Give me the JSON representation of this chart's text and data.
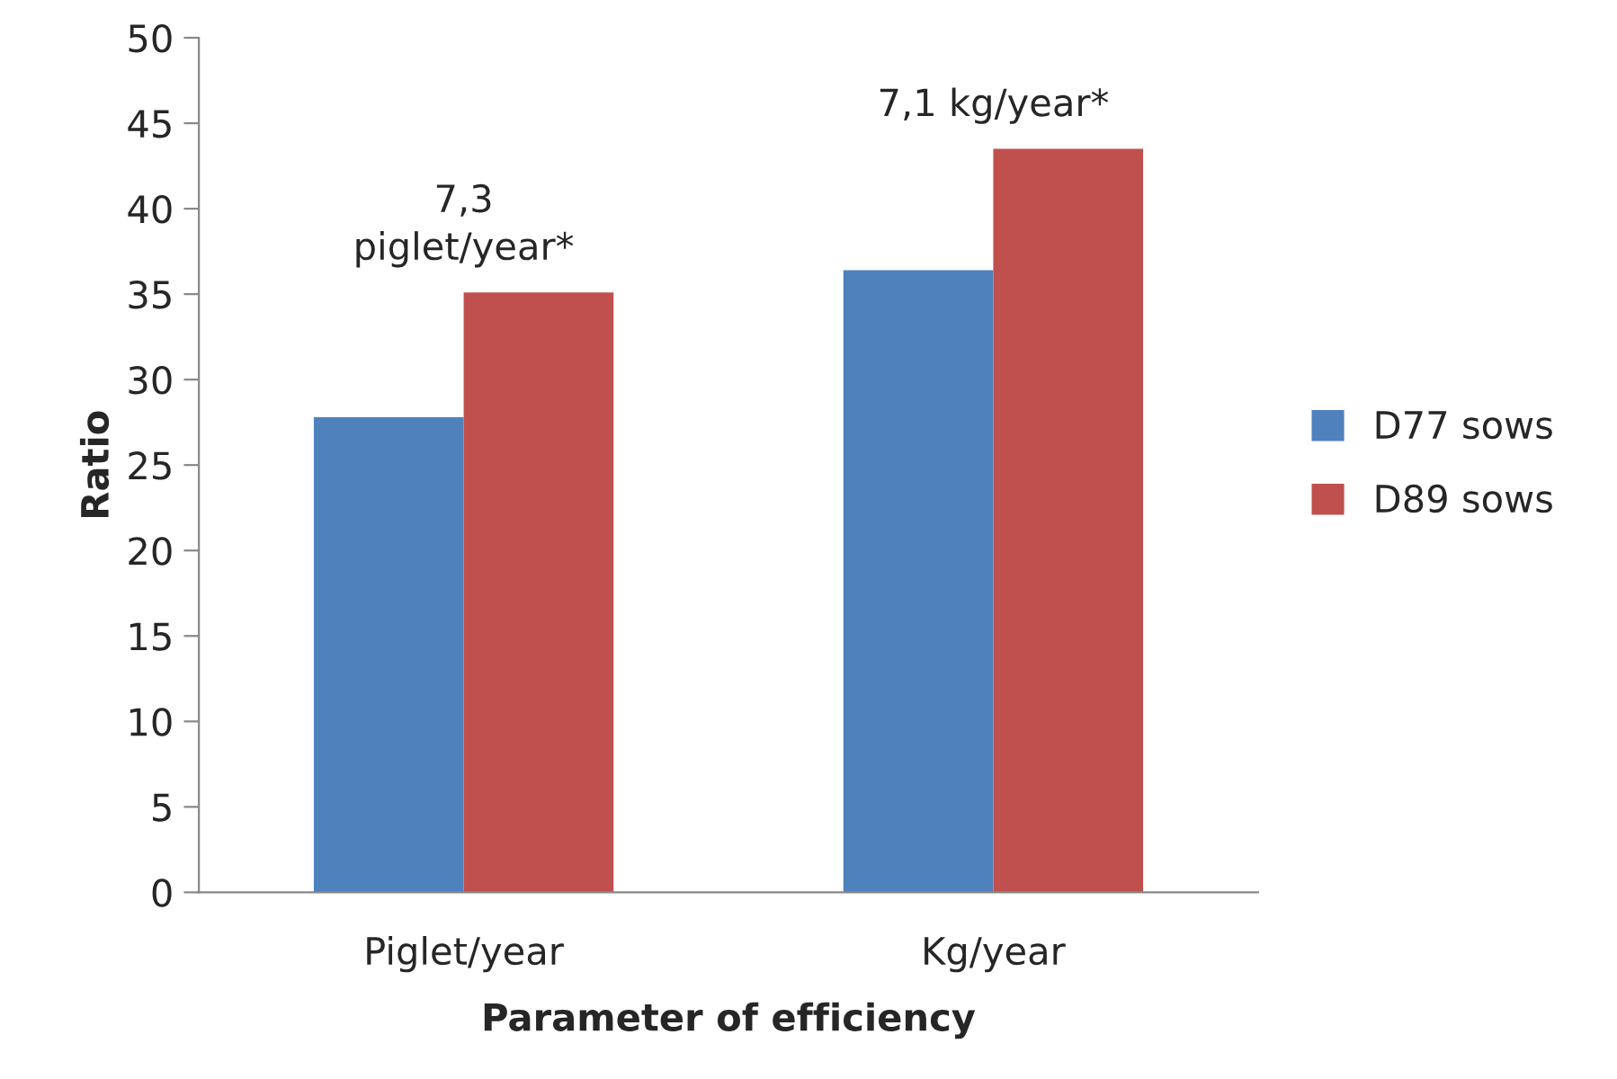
{
  "chart_data": {
    "type": "bar",
    "xlabel": "Parameter of efficiency",
    "ylabel": "Ratio",
    "categories": [
      "Piglet/year",
      "Kg/year"
    ],
    "series": [
      {
        "name": "D77 sows",
        "color": "#4f81bd",
        "values": [
          27.8,
          36.4
        ]
      },
      {
        "name": "D89 sows",
        "color": "#c0504d",
        "values": [
          35.1,
          43.5
        ]
      }
    ],
    "ylim": [
      0,
      50
    ],
    "yticks": [
      0,
      5,
      10,
      15,
      20,
      25,
      30,
      35,
      40,
      45,
      50
    ],
    "grid": false,
    "legend": "right",
    "annotations": [
      {
        "text": "7,3\npiglet/year*",
        "x": "Piglet/year",
        "y": 35.1
      },
      {
        "text": "7,1 kg/year*",
        "x": "Kg/year",
        "y": 43.5
      }
    ]
  }
}
